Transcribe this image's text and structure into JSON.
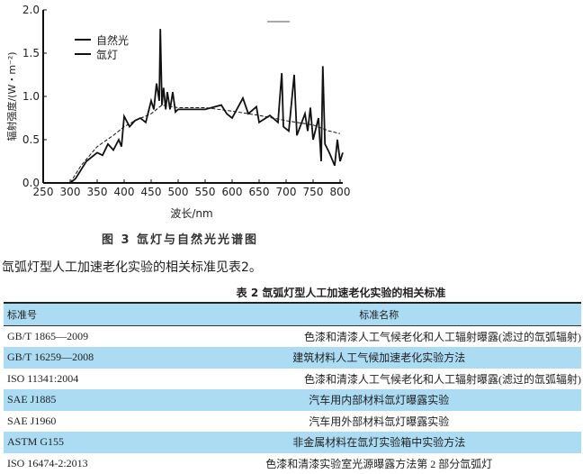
{
  "chart_data": {
    "type": "line",
    "xlabel": "波长/nm",
    "ylabel": "辐射强度/(W・m⁻²)",
    "xlim": [
      250,
      800
    ],
    "ylim": [
      0,
      2.0
    ],
    "xticks": [
      250,
      300,
      350,
      400,
      450,
      500,
      550,
      600,
      650,
      700,
      750,
      800
    ],
    "yticks": [
      "0.0",
      "0.5",
      "1.0",
      "1.5",
      "2.0"
    ],
    "legend_position": "top-left",
    "series": [
      {
        "name": "自然光",
        "style": "dashed",
        "points": [
          [
            300,
            0
          ],
          [
            320,
            0.2
          ],
          [
            350,
            0.42
          ],
          [
            380,
            0.55
          ],
          [
            400,
            0.65
          ],
          [
            420,
            0.72
          ],
          [
            450,
            0.8
          ],
          [
            470,
            0.9
          ],
          [
            500,
            0.87
          ],
          [
            550,
            0.87
          ],
          [
            600,
            0.83
          ],
          [
            650,
            0.78
          ],
          [
            700,
            0.72
          ],
          [
            750,
            0.67
          ],
          [
            780,
            0.6
          ],
          [
            800,
            0.57
          ]
        ]
      },
      {
        "name": "氙灯",
        "style": "solid",
        "points": [
          [
            300,
            0
          ],
          [
            310,
            0.05
          ],
          [
            330,
            0.25
          ],
          [
            350,
            0.35
          ],
          [
            360,
            0.32
          ],
          [
            370,
            0.45
          ],
          [
            380,
            0.38
          ],
          [
            390,
            0.5
          ],
          [
            395,
            0.42
          ],
          [
            400,
            0.77
          ],
          [
            410,
            0.65
          ],
          [
            420,
            0.72
          ],
          [
            430,
            0.75
          ],
          [
            440,
            0.7
          ],
          [
            450,
            0.95
          ],
          [
            455,
            0.85
          ],
          [
            460,
            1.15
          ],
          [
            465,
            0.95
          ],
          [
            467,
            1.78
          ],
          [
            470,
            0.9
          ],
          [
            473,
            1.1
          ],
          [
            477,
            0.85
          ],
          [
            480,
            1.05
          ],
          [
            485,
            0.85
          ],
          [
            490,
            1.05
          ],
          [
            495,
            0.82
          ],
          [
            500,
            0.85
          ],
          [
            550,
            0.85
          ],
          [
            580,
            0.9
          ],
          [
            590,
            0.8
          ],
          [
            600,
            0.75
          ],
          [
            620,
            0.98
          ],
          [
            630,
            0.8
          ],
          [
            645,
            0.88
          ],
          [
            650,
            0.7
          ],
          [
            670,
            0.78
          ],
          [
            685,
            0.7
          ],
          [
            688,
            0.95
          ],
          [
            692,
            1.27
          ],
          [
            695,
            0.65
          ],
          [
            705,
            0.6
          ],
          [
            715,
            1.25
          ],
          [
            720,
            0.55
          ],
          [
            735,
            0.8
          ],
          [
            740,
            0.6
          ],
          [
            745,
            0.87
          ],
          [
            750,
            0.5
          ],
          [
            760,
            0.75
          ],
          [
            765,
            0.25
          ],
          [
            768,
            1.35
          ],
          [
            772,
            0.45
          ],
          [
            780,
            0.35
          ],
          [
            790,
            0.2
          ],
          [
            795,
            0.5
          ],
          [
            800,
            0.25
          ],
          [
            805,
            0.35
          ]
        ]
      }
    ]
  },
  "figure_caption": "图 3  氙灯与自然光光谱图",
  "paragraph": "氙弧灯型人工加速老化实验的相关标准见表2。",
  "table": {
    "title": "表 2  氙弧灯型人工加速老化实验的相关标准",
    "headers": [
      "标准号",
      "标准名称"
    ],
    "rows": [
      [
        "GB/T 1865—2009",
        "色漆和清漆人工气候老化和人工辐射曝露(滤过的氙弧辐射)"
      ],
      [
        "GB/T 16259—2008",
        "建筑材料人工气候加速老化实验方法"
      ],
      [
        "ISO 11341:2004",
        "色漆和清漆人工气候老化和人工辐射曝露(滤过的氙弧辐射)"
      ],
      [
        "SAE J1885",
        "汽车用内部材料氙灯曝露实验"
      ],
      [
        "SAE J1960",
        "汽车用外部材料氙灯曝露实验"
      ],
      [
        "ASTM G155",
        "非金属材料在氙灯实验箱中实验方法"
      ],
      [
        "ISO 16474-2:2013",
        "色漆和清漆实验室光源曝露方法第 2 部分氙弧灯"
      ]
    ]
  }
}
